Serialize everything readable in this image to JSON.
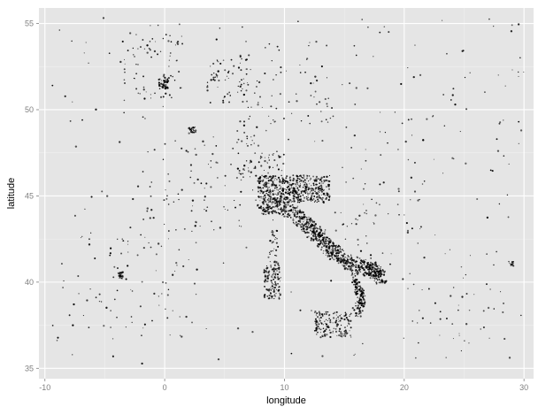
{
  "chart_data": {
    "type": "scatter",
    "title": "",
    "xlabel": "longitude",
    "ylabel": "latitude",
    "xlim": [
      -10.5,
      30.8
    ],
    "ylim": [
      34.4,
      55.9
    ],
    "x_ticks": [
      -10,
      0,
      10,
      20,
      30
    ],
    "y_ticks": [
      35,
      40,
      45,
      50,
      55
    ],
    "grid": true,
    "legend": "none",
    "colors": {
      "panel": "#e5e5e5",
      "grid": "#ffffff",
      "points": "#000000",
      "tick_text": "#7f7f7f"
    },
    "clusters": [
      {
        "name": "Northern Italy",
        "lon": [
          7.8,
          13.8
        ],
        "lat": [
          44.6,
          46.2
        ],
        "density": 520,
        "kind": "box"
      },
      {
        "name": "Italy peninsula",
        "path": [
          [
            8.0,
            44.3
          ],
          [
            9.6,
            44.5
          ],
          [
            11.2,
            43.8
          ],
          [
            12.3,
            43.0
          ],
          [
            13.2,
            42.4
          ],
          [
            14.2,
            41.7
          ],
          [
            15.3,
            41.2
          ],
          [
            16.6,
            40.9
          ],
          [
            17.6,
            40.6
          ],
          [
            18.2,
            40.2
          ]
        ],
        "spread": 0.45,
        "density": 900,
        "kind": "path"
      },
      {
        "name": "Calabria",
        "path": [
          [
            15.8,
            40.4
          ],
          [
            16.2,
            39.6
          ],
          [
            16.5,
            38.9
          ],
          [
            16.0,
            38.2
          ]
        ],
        "spread": 0.3,
        "density": 160,
        "kind": "path"
      },
      {
        "name": "Sardinia",
        "lon": [
          8.3,
          9.7
        ],
        "lat": [
          39.0,
          41.2
        ],
        "density": 130,
        "kind": "box"
      },
      {
        "name": "Sicily",
        "lon": [
          12.5,
          15.6
        ],
        "lat": [
          36.8,
          38.3
        ],
        "density": 160,
        "kind": "box"
      },
      {
        "name": "Corsica",
        "lon": [
          8.6,
          9.5
        ],
        "lat": [
          41.4,
          43.0
        ],
        "density": 25,
        "kind": "box"
      },
      {
        "name": "London",
        "lon": [
          -0.5,
          0.3
        ],
        "lat": [
          51.2,
          51.8
        ],
        "density": 50,
        "kind": "box"
      },
      {
        "name": "England",
        "lon": [
          -3.5,
          1.5
        ],
        "lat": [
          50.5,
          54.5
        ],
        "density": 70,
        "kind": "box"
      },
      {
        "name": "Paris",
        "lon": [
          2.0,
          2.6
        ],
        "lat": [
          48.6,
          49.0
        ],
        "density": 25,
        "kind": "box"
      },
      {
        "name": "Benelux",
        "lon": [
          3.5,
          7.0
        ],
        "lat": [
          50.2,
          53.0
        ],
        "density": 60,
        "kind": "box"
      },
      {
        "name": "Germany",
        "lon": [
          6.0,
          14.0
        ],
        "lat": [
          47.5,
          54.0
        ],
        "density": 90,
        "kind": "box"
      },
      {
        "name": "Switzerland",
        "lon": [
          6.0,
          10.0
        ],
        "lat": [
          45.9,
          47.5
        ],
        "density": 70,
        "kind": "box"
      },
      {
        "name": "France",
        "lon": [
          -1.5,
          7.5
        ],
        "lat": [
          43.0,
          48.5
        ],
        "density": 70,
        "kind": "box"
      },
      {
        "name": "Spain",
        "lon": [
          -9.0,
          3.0
        ],
        "lat": [
          36.5,
          43.5
        ],
        "density": 80,
        "kind": "box"
      },
      {
        "name": "Madrid",
        "lon": [
          -3.9,
          -3.5
        ],
        "lat": [
          40.2,
          40.6
        ],
        "density": 25,
        "kind": "box"
      },
      {
        "name": "Balkans",
        "lon": [
          14.0,
          22.0
        ],
        "lat": [
          41.0,
          46.5
        ],
        "density": 50,
        "kind": "box"
      },
      {
        "name": "Eastern Europe",
        "lon": [
          15.0,
          30.0
        ],
        "lat": [
          46.0,
          55.0
        ],
        "density": 50,
        "kind": "box"
      },
      {
        "name": "Greece",
        "lon": [
          20.0,
          28.5
        ],
        "lat": [
          35.5,
          41.0
        ],
        "density": 40,
        "kind": "box"
      },
      {
        "name": "Istanbul",
        "lon": [
          28.7,
          29.2
        ],
        "lat": [
          40.9,
          41.2
        ],
        "density": 15,
        "kind": "box"
      },
      {
        "name": "Scatter",
        "lon": [
          -9.5,
          30.0
        ],
        "lat": [
          35.2,
          55.5
        ],
        "density": 200,
        "kind": "box"
      }
    ]
  }
}
